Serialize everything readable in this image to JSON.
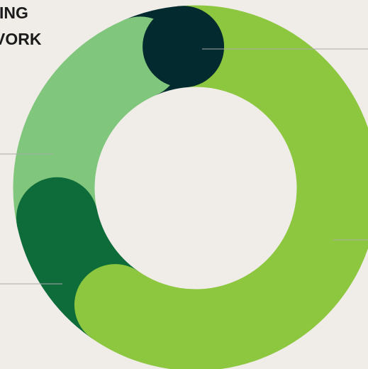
{
  "chart_data": {
    "type": "donut",
    "title_lines": [
      "ING",
      "VORK"
    ],
    "series": [
      {
        "color": "#8dc63f",
        "value": 61
      },
      {
        "color": "#0e6b3a",
        "value": 12
      },
      {
        "color": "#80c67c",
        "value": 22
      },
      {
        "color": "#032a2e",
        "value": 5
      }
    ]
  }
}
